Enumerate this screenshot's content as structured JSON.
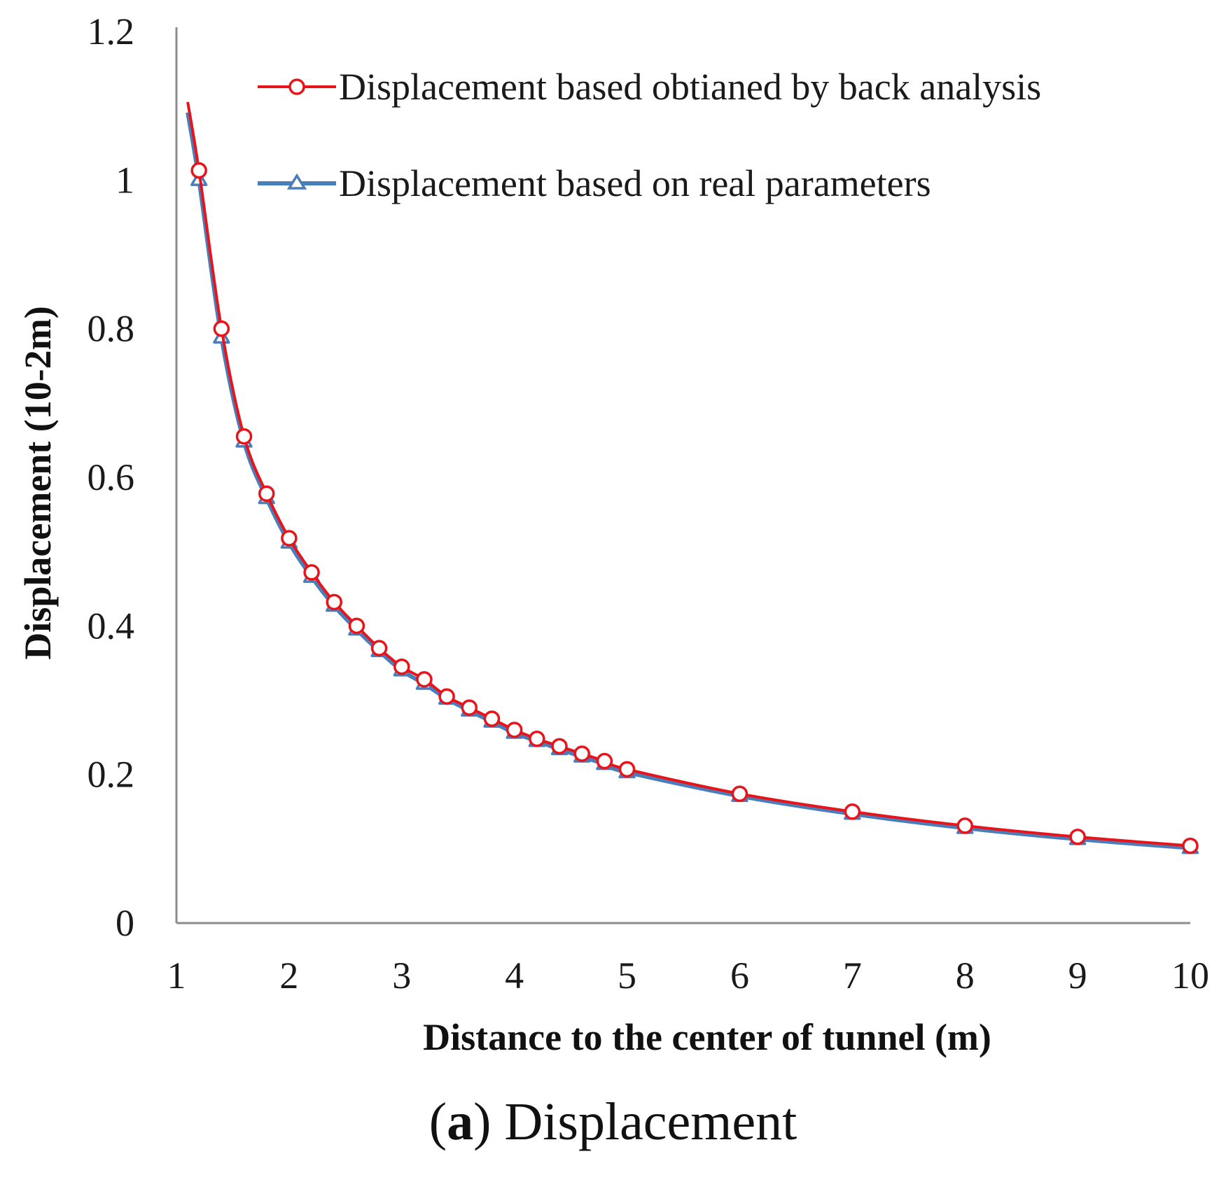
{
  "chart_data": {
    "type": "line",
    "title": "",
    "xlabel": "Distance to the center of tunnel (m)",
    "ylabel": "Displacement (10-2m)",
    "xlim": [
      1,
      10
    ],
    "ylim": [
      0,
      1.2
    ],
    "x_ticks": [
      "1",
      "2",
      "3",
      "4",
      "5",
      "6",
      "7",
      "8",
      "9",
      "10"
    ],
    "y_ticks": [
      "0",
      "0.2",
      "0.4",
      "0.6",
      "0.8",
      "1",
      "1.2"
    ],
    "grid": false,
    "legend_position": "top-right",
    "series": [
      {
        "name": "Displacement based obtianed by back analysis",
        "color": "#e8141b",
        "marker": "circle",
        "x": [
          1.2,
          1.4,
          1.6,
          1.8,
          2.0,
          2.2,
          2.4,
          2.6,
          2.8,
          3.0,
          3.2,
          3.4,
          3.6,
          3.8,
          4.0,
          4.2,
          4.4,
          4.6,
          4.8,
          5.0,
          6,
          7,
          8,
          9,
          10
        ],
        "values": [
          1.013,
          0.8,
          0.655,
          0.578,
          0.518,
          0.472,
          0.432,
          0.4,
          0.37,
          0.345,
          0.328,
          0.305,
          0.29,
          0.275,
          0.26,
          0.248,
          0.238,
          0.228,
          0.218,
          0.207,
          0.174,
          0.15,
          0.131,
          0.116,
          0.104
        ]
      },
      {
        "name": "Displacement based on real parameters",
        "color": "#4a7ebb",
        "marker": "triangle",
        "x": [
          1.2,
          1.4,
          1.6,
          1.8,
          2.0,
          2.2,
          2.4,
          2.6,
          2.8,
          3.0,
          3.2,
          3.4,
          3.6,
          3.8,
          4.0,
          4.2,
          4.4,
          4.6,
          4.8,
          5.0,
          6,
          7,
          8,
          9,
          10
        ],
        "values": [
          1.0,
          0.788,
          0.648,
          0.572,
          0.512,
          0.466,
          0.427,
          0.395,
          0.366,
          0.34,
          0.322,
          0.302,
          0.286,
          0.271,
          0.256,
          0.245,
          0.234,
          0.224,
          0.214,
          0.203,
          0.171,
          0.147,
          0.128,
          0.113,
          0.101
        ]
      }
    ]
  },
  "caption": {
    "label": "a",
    "text": "Displacement"
  }
}
